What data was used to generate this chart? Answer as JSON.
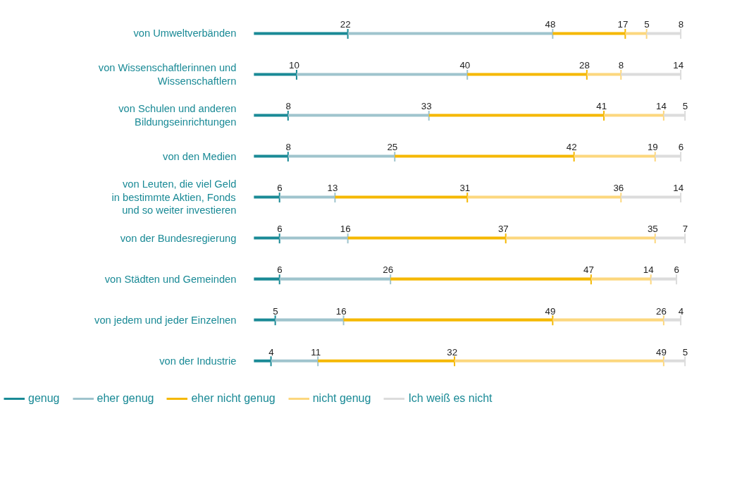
{
  "chart_data": {
    "type": "bar",
    "orientation": "horizontal",
    "stacked": true,
    "data_labels": true,
    "legend": "bottom",
    "grid": false,
    "categories": [
      "von Umweltverbänden",
      "von Wissenschaftlerinnen und\nWissenschaftlern",
      "von Schulen und anderen\nBildungseinrichtungen",
      "von den Medien",
      "von Leuten, die viel Geld\nin bestimmte Aktien, Fonds\nund so weiter investieren",
      "von der Bundesregierung",
      "von Städten und Gemeinden",
      "von jedem und jeder Einzelnen",
      "von der Industrie"
    ],
    "series": [
      {
        "name": "genug",
        "color": "#1a8a96",
        "values": [
          22,
          10,
          8,
          8,
          6,
          6,
          6,
          5,
          4
        ]
      },
      {
        "name": "eher genug",
        "color": "#9fc4cd",
        "values": [
          48,
          40,
          33,
          25,
          13,
          16,
          26,
          16,
          11
        ]
      },
      {
        "name": "eher nicht genug",
        "color": "#f5b800",
        "values": [
          17,
          28,
          41,
          42,
          31,
          37,
          47,
          49,
          32
        ]
      },
      {
        "name": "nicht genug",
        "color": "#fcd77e",
        "values": [
          5,
          8,
          14,
          19,
          36,
          35,
          14,
          26,
          49
        ]
      },
      {
        "name": "Ich weiß es nicht",
        "color": "#dcdcdc",
        "values": [
          8,
          14,
          5,
          6,
          14,
          7,
          6,
          4,
          5
        ]
      }
    ]
  }
}
